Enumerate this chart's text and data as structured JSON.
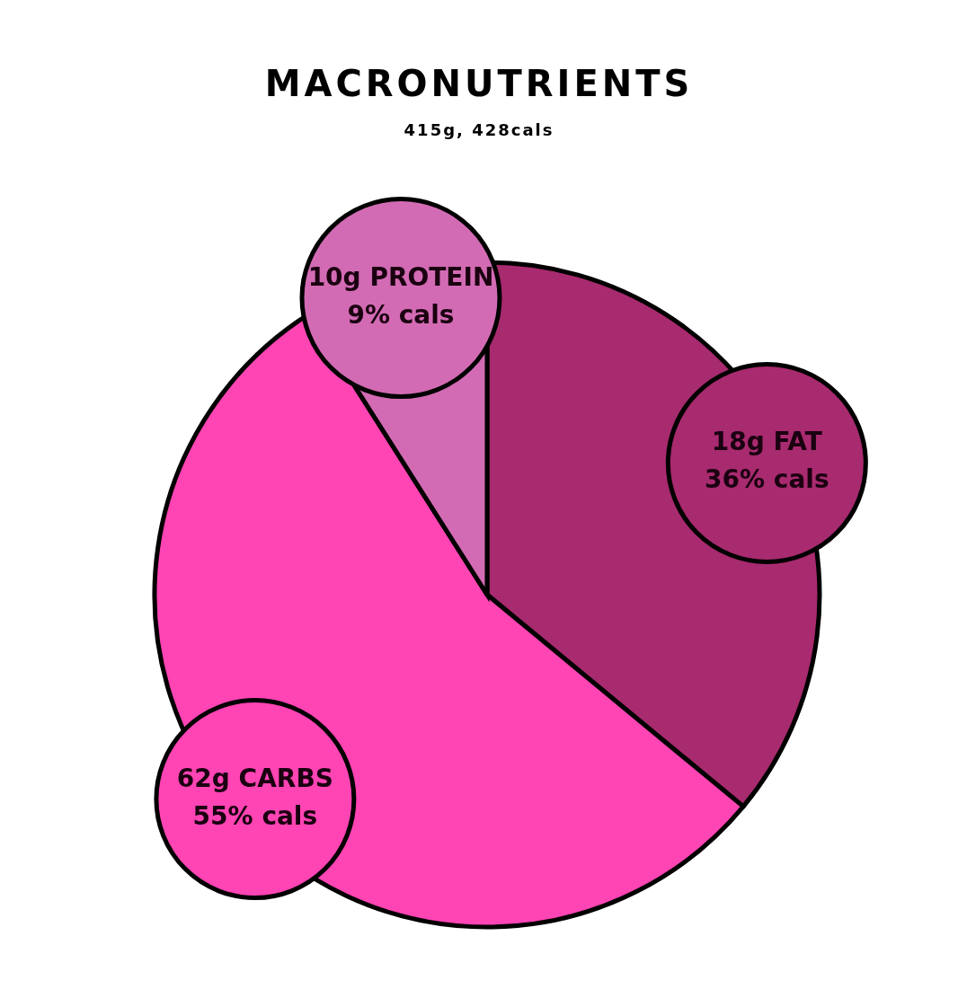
{
  "chart_data": {
    "type": "pie",
    "title": "MACRONUTRIENTS",
    "subtitle": "415g, 428cals",
    "categories": [
      "18g FAT",
      "62g CARBS",
      "10g PROTEIN"
    ],
    "values": [
      36,
      55,
      9
    ],
    "colors": [
      "#a82a6f",
      "#ff44b4",
      "#d36bb4"
    ],
    "value_labels": [
      "36% cals",
      "55% cals",
      "9% cals"
    ]
  }
}
